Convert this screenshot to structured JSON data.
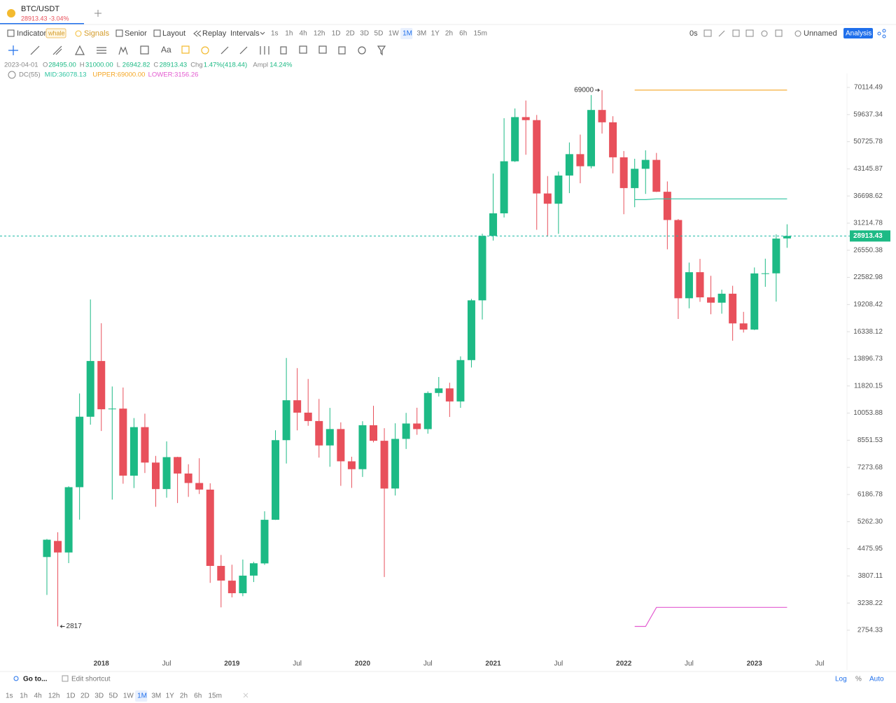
{
  "ui": {
    "tab": {
      "symbol": "BTC/USDT",
      "price": "28913.43",
      "change": "-3.04%"
    },
    "toolbar": {
      "indicator": "Indicator",
      "whale": "whale",
      "signals": "Signals",
      "senior": "Senior",
      "layout": "Layout",
      "replay": "Replay",
      "intervals_label": "Intervals",
      "countdown": "0s",
      "layout_name": "Unnamed",
      "analysis": "Analysis"
    },
    "intervals": [
      {
        "label": "1s"
      },
      {
        "label": "1h"
      },
      {
        "label": "4h"
      },
      {
        "label": "12h"
      },
      {
        "label": "1D"
      },
      {
        "label": "2D"
      },
      {
        "label": "3D"
      },
      {
        "label": "5D"
      },
      {
        "label": "1W"
      },
      {
        "label": "1M",
        "active": true
      },
      {
        "label": "3M"
      },
      {
        "label": "1Y"
      },
      {
        "label": "2h"
      },
      {
        "label": "6h"
      },
      {
        "label": "15m"
      }
    ],
    "header": {
      "date": "2023-04-01",
      "o_key": "O",
      "o": "28495.00",
      "h_key": "H",
      "h": "31000.00",
      "l_key": "L",
      "l": "26942.82",
      "c_key": "C",
      "c": "28913.43",
      "chg_key": "Chg",
      "chg": "1.47%(418.44)",
      "ampl_key": "Ampl",
      "ampl": "14.24%"
    },
    "dc_header": {
      "name": "DC(55)",
      "mid": "MID:36078.13",
      "upper": "UPPER:69000.00",
      "lower": "LOWER:3156.26"
    },
    "bottom": {
      "goto": "Go to...",
      "edit": "Edit shortcut",
      "log": "Log",
      "percent": "%",
      "auto": "Auto"
    }
  },
  "chart_data": {
    "type": "candlestick",
    "log_scale": true,
    "categories": [
      null,
      null,
      null,
      null,
      null,
      "2018",
      null,
      null,
      null,
      null,
      null,
      "Jul",
      null,
      null,
      null,
      null,
      null,
      "2019",
      null,
      null,
      null,
      null,
      null,
      "Jul",
      null,
      null,
      null,
      null,
      null,
      "2020",
      null,
      null,
      null,
      null,
      null,
      "Jul",
      null,
      null,
      null,
      null,
      null,
      "2021",
      null,
      null,
      null,
      null,
      null,
      "Jul",
      null,
      null,
      null,
      null,
      null,
      "2022",
      null,
      null,
      null,
      null,
      null,
      "Jul",
      null,
      null,
      null,
      null,
      null,
      "2023",
      null,
      null,
      null,
      null,
      null,
      "Jul"
    ],
    "open": [
      4261.48,
      4689.89,
      4378.49,
      6463,
      9837,
      13715.65,
      10285.1,
      10325.64,
      6922,
      9246.01,
      7485.01,
      6391.08,
      7735.67,
      7011.21,
      6626.57,
      6369.52,
      4041.27,
      3701.23,
      3434.1,
      3814.26,
      4102.44,
      5321.94,
      8555,
      10854.1,
      10080.53,
      9588.74,
      8289.97,
      9140.86,
      7540.63,
      7195.24,
      9351.71,
      8523.61,
      6412.14,
      8620,
      9448.27,
      9138.08,
      11335.46,
      11649.51,
      10776.59,
      13791,
      19695.87,
      28923.63,
      33092.97,
      45134.11,
      58739.46,
      57697.25,
      37254.24,
      35045,
      41461.84,
      47100.89,
      43820.01,
      61299.81,
      56950.56,
      46216.93,
      38466.9,
      43160,
      45510.35,
      37631.83,
      31801.05,
      19942.21,
      23296.36,
      20048.44,
      19422.61,
      20490.74,
      17165.53,
      16541.77,
      23125.12,
      23137.84,
      28495,
      null,
      null,
      null
    ],
    "high": [
      4745.42,
      4939.19,
      6498.01,
      11300.03,
      19798.68,
      17176.24,
      11786.01,
      11710,
      9759.82,
      10020,
      7786.69,
      8491.77,
      7750,
      7410,
      7680,
      6615.15,
      4313.55,
      4069.8,
      4198,
      4140,
      5600,
      9074.26,
      13970,
      13147.08,
      12325,
      10939.56,
      10370,
      9513.68,
      7750,
      9578,
      10500,
      9188,
      9460,
      10067,
      10380,
      11444,
      12468,
      12050.85,
      14100,
      19863.16,
      29300,
      41950,
      58352.8,
      61844,
      64854,
      59500,
      41330,
      42448,
      50500,
      52920,
      67000,
      69000,
      59053.55,
      47990,
      45821,
      48189.84,
      47444.11,
      40023.77,
      31986.1,
      24668,
      25211.32,
      22799,
      20988.39,
      21480.65,
      18387.95,
      23960.54,
      25250,
      29184.68,
      31000,
      null,
      null,
      null
    ],
    "low": [
      3400,
      2817,
      4110,
      5325.01,
      9380,
      9035,
      6000.01,
      6600.1,
      6430,
      7032.95,
      5750,
      6070,
      5880,
      6100,
      6205,
      3652.66,
      3156.26,
      3349.92,
      3373.1,
      3670.69,
      4067,
      5316.2,
      7444.58,
      9070,
      9320,
      7710,
      7300,
      6515,
      6435,
      6871.01,
      8445,
      3782.13,
      6150.11,
      8117,
      8833,
      8893.03,
      11100,
      9825,
      10374,
      13195.05,
      17572.33,
      28130,
      32296.16,
      44950.53,
      46930,
      30000,
      28805,
      29278,
      37332.7,
      39600,
      43283.03,
      53256.64,
      42000.3,
      32917.17,
      34322.28,
      37155,
      37578.2,
      26700,
      17622,
      18781,
      19520,
      18125.98,
      18190,
      15476,
      16256.3,
      16499.01,
      21351.07,
      19549.09,
      26942.82,
      null,
      null,
      null
    ],
    "close": [
      4724.89,
      4378.51,
      6463,
      9838.96,
      13716.36,
      10285.1,
      10326.5,
      6923.91,
      9246.01,
      7485.01,
      6390.07,
      7730.93,
      7011.21,
      6626.57,
      6371.93,
      4041.32,
      3702.9,
      3434.1,
      3813.69,
      4105.4,
      5320.81,
      8555,
      10854.1,
      10080.53,
      9588.74,
      8289.34,
      9140.85,
      7541.89,
      7195.23,
      9352.89,
      8523.61,
      6410.44,
      8620,
      9448.27,
      9138.55,
      11335.46,
      11649.51,
      10776.59,
      13791,
      19695.87,
      28923.63,
      33092.98,
      45135.66,
      58740.55,
      57694.27,
      37253.81,
      35045,
      41461.83,
      47100.89,
      43824.1,
      61299.8,
      56950.56,
      46216.93,
      38466.9,
      43160,
      45510.34,
      37630.8,
      31801.04,
      19942.21,
      23293.32,
      20050.02,
      19422.61,
      20490.74,
      17164.12,
      16542.4,
      23125.13,
      23141.57,
      28465.36,
      28913.43,
      null,
      null,
      null
    ],
    "up_color": "#1dba85",
    "down_color": "#e8505b",
    "dc_upper": [
      null,
      null,
      null,
      null,
      null,
      null,
      null,
      null,
      null,
      null,
      null,
      null,
      null,
      null,
      null,
      null,
      null,
      null,
      null,
      null,
      null,
      null,
      null,
      null,
      null,
      null,
      null,
      null,
      null,
      null,
      null,
      null,
      null,
      null,
      null,
      null,
      null,
      null,
      null,
      null,
      null,
      null,
      null,
      null,
      null,
      null,
      null,
      null,
      null,
      null,
      null,
      null,
      null,
      null,
      69000,
      69000,
      69000,
      69000,
      69000,
      69000,
      69000,
      69000,
      69000,
      69000,
      69000,
      69000,
      69000,
      69000,
      69000,
      null,
      null,
      null
    ],
    "dc_mid": [
      null,
      null,
      null,
      null,
      null,
      null,
      null,
      null,
      null,
      null,
      null,
      null,
      null,
      null,
      null,
      null,
      null,
      null,
      null,
      null,
      null,
      null,
      null,
      null,
      null,
      null,
      null,
      null,
      null,
      null,
      null,
      null,
      null,
      null,
      null,
      null,
      null,
      null,
      null,
      null,
      null,
      null,
      null,
      null,
      null,
      null,
      null,
      null,
      null,
      null,
      null,
      null,
      null,
      null,
      35908.5,
      35908.5,
      36078.13,
      36078.13,
      36078.13,
      36078.13,
      36078.13,
      36078.13,
      36078.13,
      36078.13,
      36078.13,
      36078.13,
      36078.13,
      36078.13,
      36078.13,
      null,
      null,
      null
    ],
    "dc_lower": [
      null,
      null,
      null,
      null,
      null,
      null,
      null,
      null,
      null,
      null,
      null,
      null,
      null,
      null,
      null,
      null,
      null,
      null,
      null,
      null,
      null,
      null,
      null,
      null,
      null,
      null,
      null,
      null,
      null,
      null,
      null,
      null,
      null,
      null,
      null,
      null,
      null,
      null,
      null,
      null,
      null,
      null,
      null,
      null,
      null,
      null,
      null,
      null,
      null,
      null,
      null,
      null,
      null,
      null,
      2817,
      2817,
      3156.26,
      3156.26,
      3156.26,
      3156.26,
      3156.26,
      3156.26,
      3156.26,
      3156.26,
      3156.26,
      3156.26,
      3156.26,
      3156.26,
      3156.26,
      null,
      null,
      null
    ],
    "dc_colors": {
      "upper": "#f5a623",
      "mid": "#2ec4a0",
      "lower": "#e35bd0"
    },
    "max_label": 69000,
    "min_label": 2817,
    "ylim": [
      2340,
      73100
    ],
    "yticks": [
      70114.49,
      59637.34,
      50725.78,
      43145.87,
      36698.62,
      31214.78,
      26550.38,
      22582.98,
      19208.42,
      16338.12,
      13896.73,
      11820.15,
      10053.88,
      8551.53,
      7273.68,
      6186.78,
      {
        "value": 5262.3,
        "label": "5262.30"
      },
      4475.95,
      3807.11,
      3238.22,
      2754.33
    ]
  }
}
